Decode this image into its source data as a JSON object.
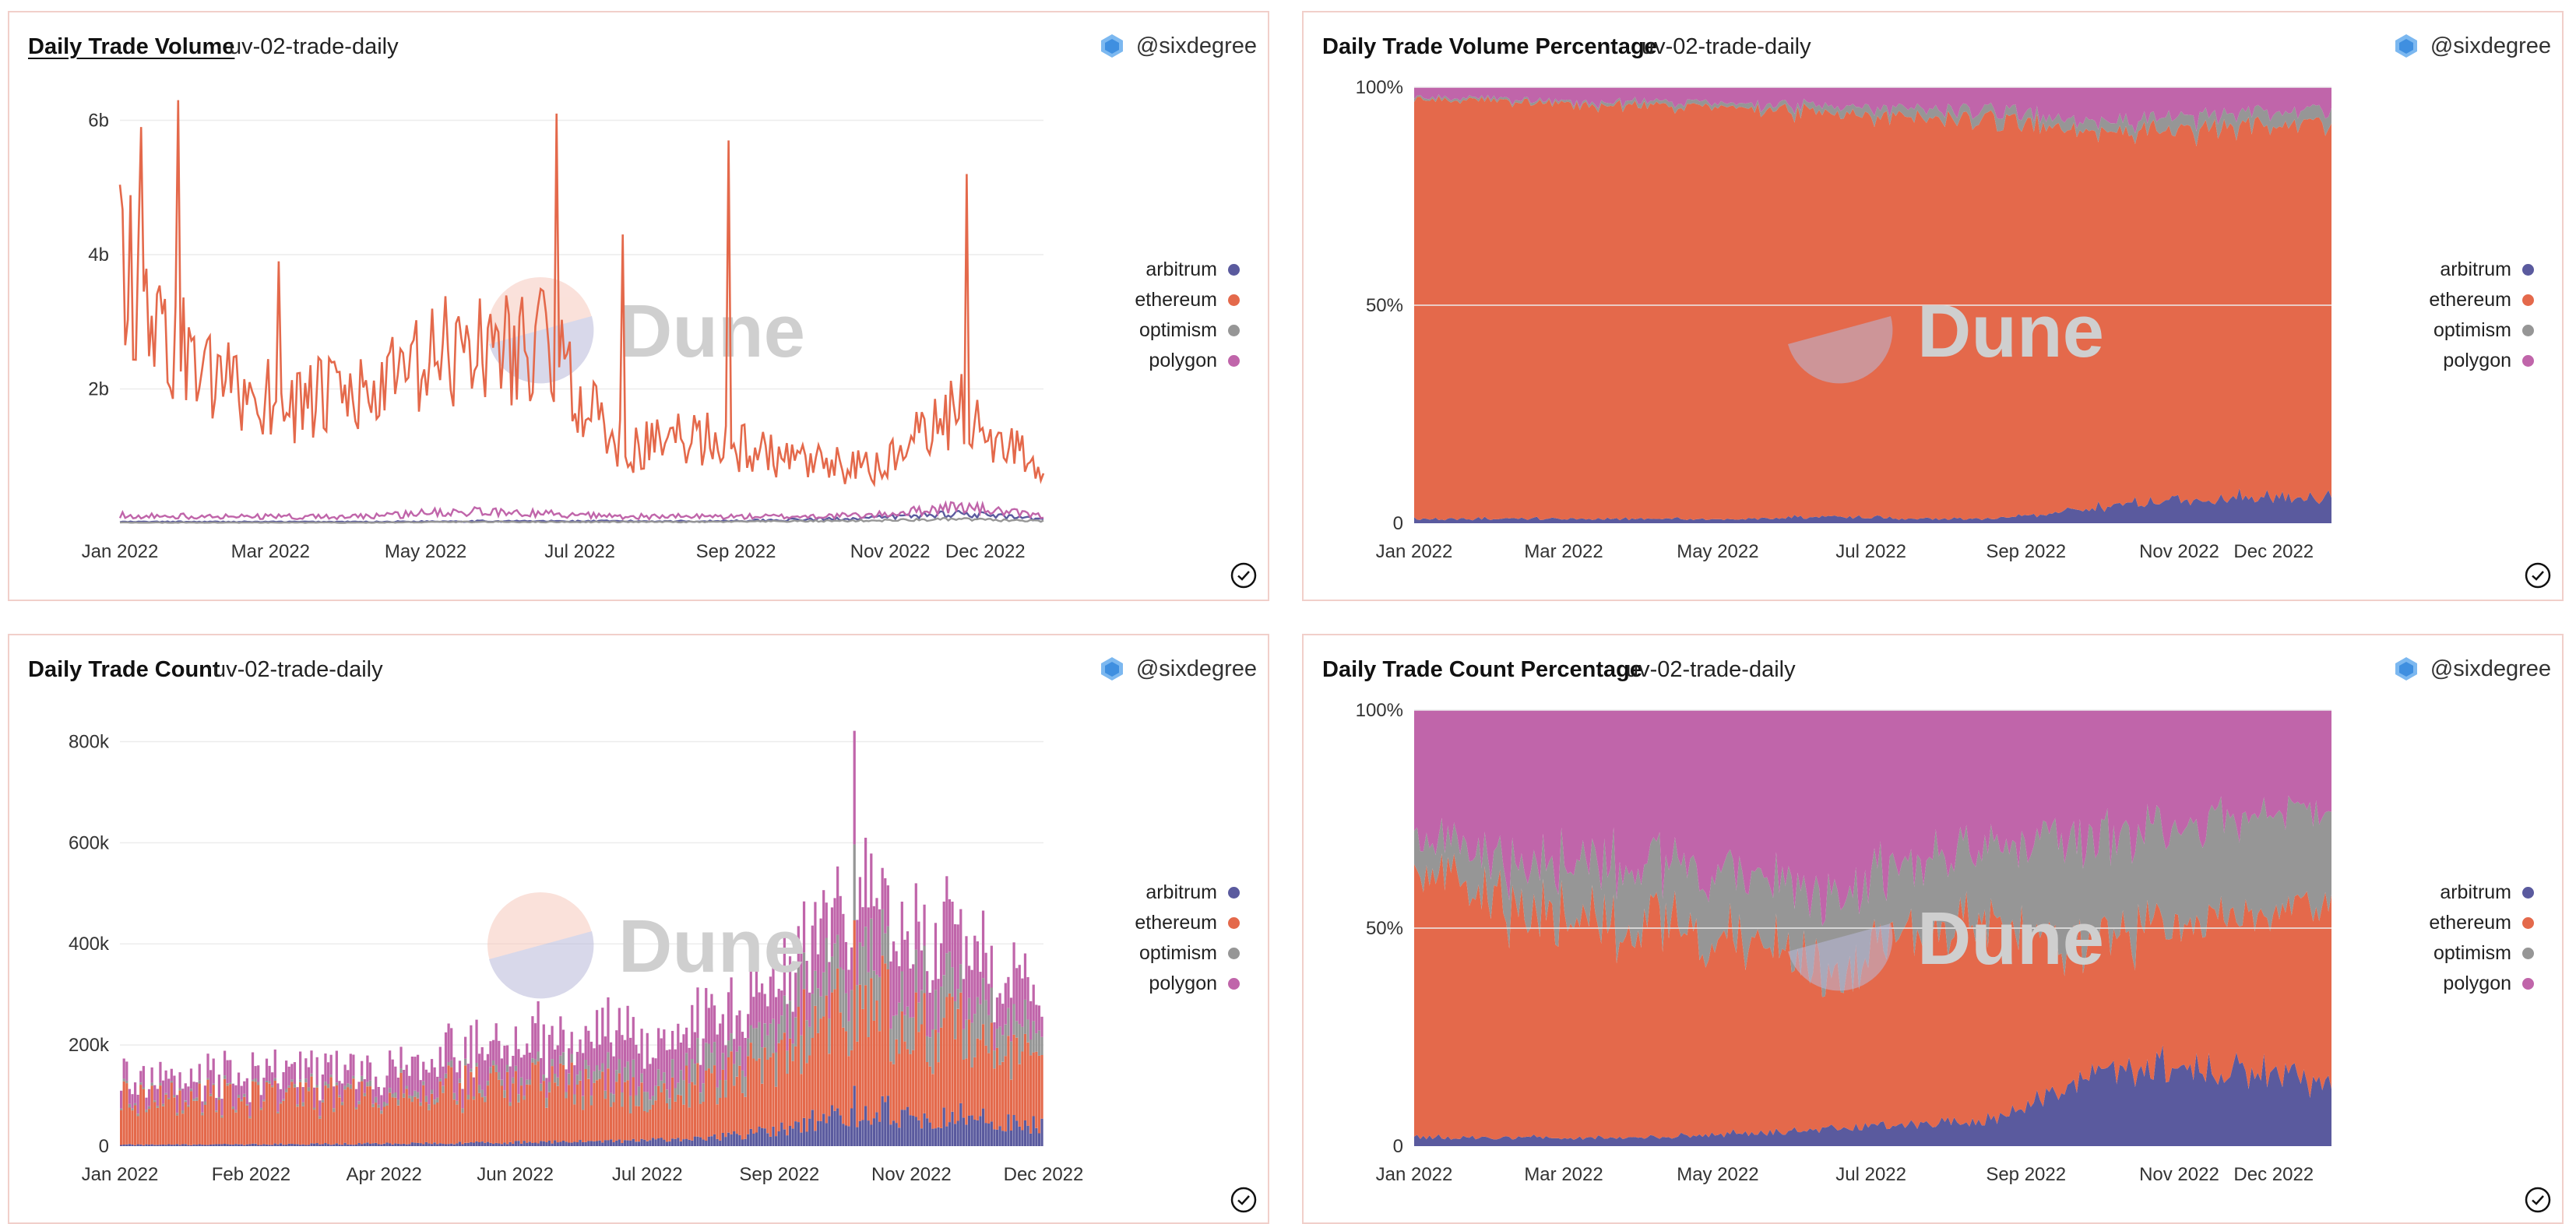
{
  "panels": [
    {
      "title": "Daily Trade Volume",
      "subtitle": "uv-02-trade-daily",
      "author": "@sixdegree"
    },
    {
      "title": "Daily Trade Volume Percentage",
      "subtitle": "uv-02-trade-daily",
      "author": "@sixdegree"
    },
    {
      "title": "Daily Trade Count",
      "subtitle": "uv-02-trade-daily",
      "author": "@sixdegree"
    },
    {
      "title": "Daily Trade Count Percentage",
      "subtitle": "uv-02-trade-daily",
      "author": "@sixdegree"
    }
  ],
  "watermark": "Dune",
  "colors": {
    "arbitrum": "#5a5a9e",
    "ethereum": "#e4694b",
    "optimism": "#969696",
    "polygon": "#c065aa"
  },
  "chart_data": [
    {
      "type": "line",
      "title": "Daily Trade Volume",
      "xlabel": "",
      "ylabel": "",
      "x_ticks": [
        "Jan 2022",
        "Mar 2022",
        "May 2022",
        "Jul 2022",
        "Sep 2022",
        "Nov 2022",
        "Dec 2022"
      ],
      "y_ticks": [
        "2b",
        "4b",
        "6b"
      ],
      "ylim": [
        0,
        6.4
      ],
      "x": [
        "Jan 2022",
        "Feb 2022",
        "Mar 2022",
        "Apr 2022",
        "May 2022",
        "Jun 2022",
        "Jul 2022",
        "Aug 2022",
        "Sep 2022",
        "Oct 2022",
        "Nov 2022",
        "Dec 2022"
      ],
      "series": [
        {
          "name": "arbitrum",
          "values": [
            0.02,
            0.02,
            0.02,
            0.02,
            0.03,
            0.03,
            0.03,
            0.03,
            0.05,
            0.08,
            0.15,
            0.05
          ]
        },
        {
          "name": "ethereum",
          "values": [
            3.9,
            2.1,
            1.8,
            1.9,
            2.6,
            2.7,
            1.1,
            1.3,
            0.9,
            0.8,
            1.7,
            0.8
          ]
        },
        {
          "name": "optimism",
          "values": [
            0.01,
            0.01,
            0.01,
            0.01,
            0.02,
            0.02,
            0.02,
            0.02,
            0.03,
            0.04,
            0.06,
            0.03
          ]
        },
        {
          "name": "polygon",
          "values": [
            0.12,
            0.1,
            0.1,
            0.1,
            0.18,
            0.15,
            0.1,
            0.1,
            0.1,
            0.12,
            0.25,
            0.1
          ]
        }
      ],
      "legend": "right"
    },
    {
      "type": "area",
      "stacked_percent": true,
      "title": "Daily Trade Volume Percentage",
      "x_ticks": [
        "Jan 2022",
        "Mar 2022",
        "May 2022",
        "Jul 2022",
        "Sep 2022",
        "Nov 2022",
        "Dec 2022"
      ],
      "y_ticks": [
        "0",
        "50%",
        "100%"
      ],
      "ylim": [
        0,
        100
      ],
      "x": [
        "Jan 2022",
        "Feb 2022",
        "Mar 2022",
        "Apr 2022",
        "May 2022",
        "Jun 2022",
        "Jul 2022",
        "Aug 2022",
        "Sep 2022",
        "Oct 2022",
        "Nov 2022",
        "Dec 2022"
      ],
      "series": [
        {
          "name": "arbitrum",
          "values": [
            1,
            1,
            1,
            1,
            1,
            1.5,
            1,
            1,
            3,
            5,
            6,
            6
          ]
        },
        {
          "name": "ethereum",
          "values": [
            96,
            96,
            95,
            95,
            94,
            93,
            92,
            92,
            87,
            85,
            85,
            86
          ]
        },
        {
          "name": "optimism",
          "values": [
            0.5,
            0.5,
            0.5,
            1,
            1,
            1.5,
            2,
            2,
            2,
            3,
            3,
            3
          ]
        },
        {
          "name": "polygon",
          "values": [
            2.5,
            2.5,
            3.5,
            3,
            4,
            4,
            5,
            5,
            8,
            7,
            6,
            5
          ]
        }
      ],
      "legend": "right"
    },
    {
      "type": "bar",
      "stacked": true,
      "title": "Daily Trade Count",
      "x_ticks": [
        "Jan 2022",
        "Feb 2022",
        "Apr 2022",
        "Jun 2022",
        "Jul 2022",
        "Sep 2022",
        "Nov 2022",
        "Dec 2022"
      ],
      "y_ticks": [
        "0",
        "200k",
        "400k",
        "600k",
        "800k"
      ],
      "ylim": [
        0,
        850
      ],
      "x": [
        "Jan 2022",
        "Feb 2022",
        "Mar 2022",
        "Apr 2022",
        "May 2022",
        "Jun 2022",
        "Jul 2022",
        "Aug 2022",
        "Sep 2022",
        "Oct 2022",
        "Nov 2022",
        "Dec 2022"
      ],
      "series": [
        {
          "name": "arbitrum",
          "values": [
            3,
            3,
            4,
            5,
            6,
            8,
            10,
            15,
            35,
            55,
            60,
            40
          ]
        },
        {
          "name": "ethereum",
          "values": [
            100,
            90,
            90,
            95,
            110,
            120,
            95,
            105,
            140,
            160,
            180,
            130
          ]
        },
        {
          "name": "optimism",
          "values": [
            5,
            5,
            5,
            8,
            10,
            15,
            25,
            40,
            55,
            70,
            70,
            50
          ]
        },
        {
          "name": "polygon",
          "values": [
            30,
            35,
            40,
            50,
            60,
            70,
            80,
            85,
            90,
            100,
            120,
            70
          ]
        }
      ],
      "legend": "right"
    },
    {
      "type": "area",
      "stacked_percent": true,
      "title": "Daily Trade Count Percentage",
      "x_ticks": [
        "Jan 2022",
        "Mar 2022",
        "May 2022",
        "Jul 2022",
        "Sep 2022",
        "Nov 2022",
        "Dec 2022"
      ],
      "y_ticks": [
        "0",
        "50%",
        "100%"
      ],
      "ylim": [
        0,
        100
      ],
      "x": [
        "Jan 2022",
        "Feb 2022",
        "Mar 2022",
        "Apr 2022",
        "May 2022",
        "Jun 2022",
        "Jul 2022",
        "Aug 2022",
        "Sep 2022",
        "Oct 2022",
        "Nov 2022",
        "Dec 2022"
      ],
      "series": [
        {
          "name": "arbitrum",
          "values": [
            2,
            2,
            2,
            2,
            3,
            4,
            5,
            6,
            15,
            18,
            17,
            14
          ]
        },
        {
          "name": "ethereum",
          "values": [
            63,
            53,
            50,
            48,
            43,
            37,
            43,
            45,
            30,
            33,
            37,
            40
          ]
        },
        {
          "name": "optimism",
          "values": [
            7,
            10,
            13,
            14,
            16,
            17,
            16,
            18,
            25,
            22,
            23,
            23
          ]
        },
        {
          "name": "polygon",
          "values": [
            28,
            35,
            35,
            36,
            38,
            42,
            36,
            31,
            30,
            27,
            23,
            23
          ]
        }
      ],
      "legend": "right"
    }
  ]
}
